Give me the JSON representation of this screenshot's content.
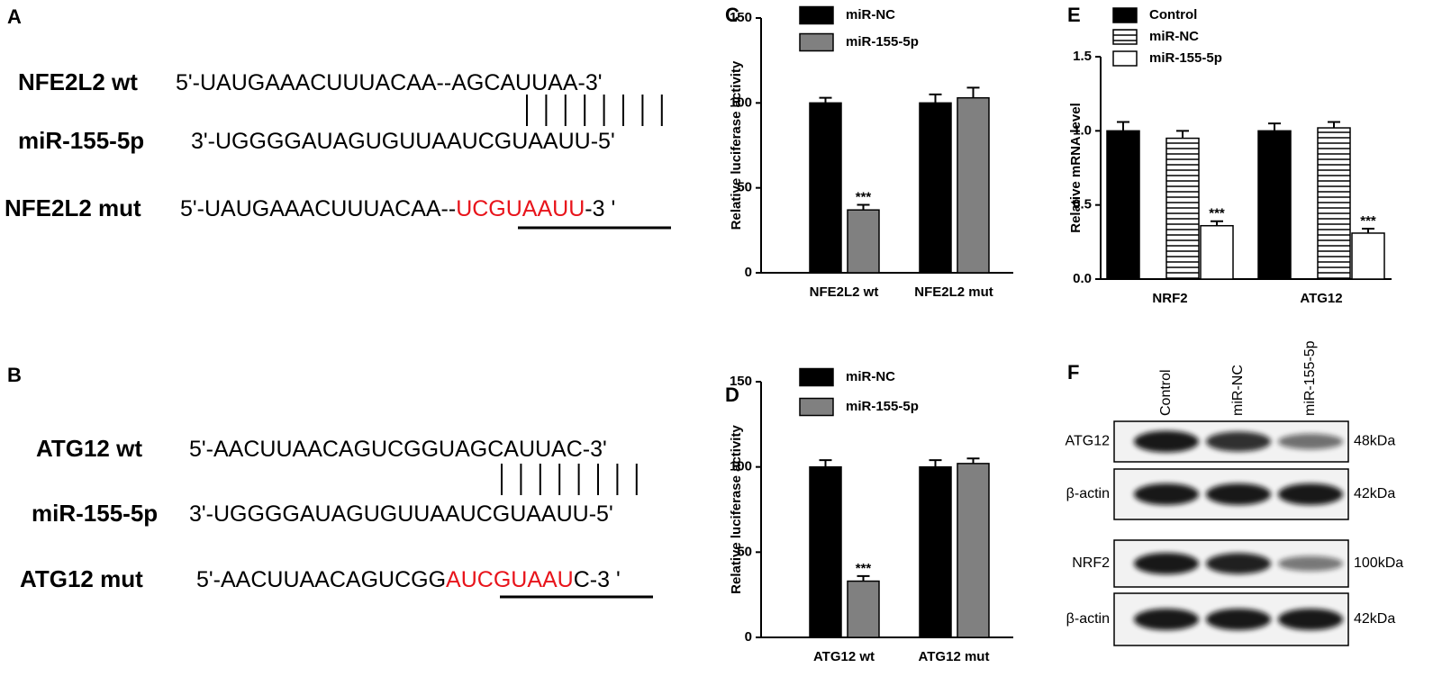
{
  "panel_a": {
    "label": "A",
    "rows": [
      {
        "name": "NFE2L2 wt",
        "sequence": [
          "5'-UAUGAAACUUUACAA--AGCAUUAA-3'"
        ]
      },
      {
        "name": "miR-155-5p",
        "sequence": [
          "3'-UGGGGAUAGUGUUAAUCGUAAUU-5'"
        ]
      },
      {
        "name": "NFE2L2 mut",
        "sequence": [
          "5'-UAUGAAACUUUACAA--",
          "UCGUAAUU",
          "-3 '"
        ]
      }
    ]
  },
  "panel_b": {
    "label": "B",
    "rows": [
      {
        "name": "ATG12 wt",
        "sequence": [
          "5'-AACUUAACAGUCGGUAGCAUUAC-3'"
        ]
      },
      {
        "name": "miR-155-5p",
        "sequence": [
          "3'-UGGGGAUAGUGUUAAUCGUAAUU-5'"
        ]
      },
      {
        "name": "ATG12 mut",
        "sequence": [
          "5'-AACUUAACAGUCGG",
          "AUCGUAAU",
          "C-3 '"
        ]
      }
    ]
  },
  "panel_f": {
    "label": "F",
    "lanes": [
      "Control",
      "miR-NC",
      "miR-155-5p"
    ],
    "blots": [
      {
        "protein": "ATG12",
        "size": "48kDa"
      },
      {
        "protein": "β-actin",
        "size": "42kDa"
      },
      {
        "protein": "NRF2",
        "size": "100kDa"
      },
      {
        "protein": "β-actin",
        "size": "42kDa"
      }
    ]
  },
  "chart_data": [
    {
      "type": "bar",
      "label": "C",
      "y_label": "Relative luciferase activity",
      "categories": [
        "NFE2L2 wt",
        "NFE2L2 mut"
      ],
      "series": [
        {
          "name": "miR-NC",
          "color": "#000000",
          "values": [
            100,
            100
          ],
          "errors": [
            3,
            5
          ]
        },
        {
          "name": "miR-155-5p",
          "color": "#808080",
          "values": [
            37,
            103
          ],
          "errors": [
            3,
            6
          ],
          "annotations": [
            "***",
            null
          ]
        }
      ],
      "ylim": [
        0,
        150
      ],
      "yticks": [
        0,
        50,
        100,
        150
      ],
      "legend": "top-left"
    },
    {
      "type": "bar",
      "label": "D",
      "y_label": "Relative luciferase activity",
      "categories": [
        "ATG12 wt",
        "ATG12 mut"
      ],
      "series": [
        {
          "name": "miR-NC",
          "color": "#000000",
          "values": [
            100,
            100
          ],
          "errors": [
            4,
            4
          ]
        },
        {
          "name": "miR-155-5p",
          "color": "#808080",
          "values": [
            33,
            102
          ],
          "errors": [
            3,
            3
          ],
          "annotations": [
            "***",
            null
          ]
        }
      ],
      "ylim": [
        0,
        150
      ],
      "yticks": [
        0,
        50,
        100,
        150
      ],
      "legend": "top-left"
    },
    {
      "type": "bar",
      "label": "E",
      "y_label": "Relative mRNA level",
      "categories": [
        "NRF2",
        "ATG12"
      ],
      "series": [
        {
          "name": "Control",
          "color": "#000000",
          "values": [
            1.0,
            1.0
          ],
          "errors": [
            0.06,
            0.05
          ]
        },
        {
          "name": "miR-NC",
          "color": "#ffffff",
          "pattern": "horizontal-lines",
          "values": [
            0.95,
            1.02
          ],
          "errors": [
            0.05,
            0.04
          ]
        },
        {
          "name": "miR-155-5p",
          "color": "#ffffff",
          "values": [
            0.36,
            0.31
          ],
          "errors": [
            0.03,
            0.03
          ],
          "annotations": [
            "***",
            "***"
          ]
        }
      ],
      "ylim": [
        0,
        1.5
      ],
      "yticks": [
        {
          "value": 0,
          "label": "0.0"
        },
        0.5,
        {
          "value": 1,
          "label": "1.0"
        },
        1.5
      ],
      "legend": "top-left"
    }
  ]
}
